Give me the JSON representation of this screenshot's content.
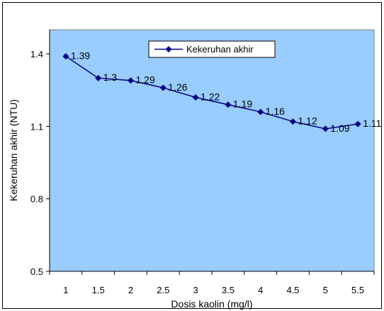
{
  "chart_data": {
    "type": "line",
    "title": "",
    "xlabel": "Dosis kaolin (mg/l)",
    "ylabel": "Kekeruhan akhir (NTU)",
    "x_tick_labels": [
      "1",
      "1.5",
      "2",
      "2.5",
      "3",
      "3.5",
      "4",
      "4.5",
      "5",
      "5.5"
    ],
    "y_tick_labels": [
      "0.5",
      "0.8",
      "1.1",
      "1.4"
    ],
    "y_ticks": [
      0.5,
      0.8,
      1.1,
      1.4
    ],
    "ylim": [
      0.5,
      1.5
    ],
    "grid": false,
    "legend_position": "top-center",
    "colors": {
      "plot_background": "#99ccff",
      "series": "#000080"
    },
    "series": [
      {
        "name": "Kekeruhan akhir",
        "x": [
          1,
          1.5,
          2,
          2.5,
          3,
          3.5,
          4,
          4.5,
          5,
          5.5
        ],
        "values": [
          1.39,
          1.3,
          1.29,
          1.26,
          1.22,
          1.19,
          1.16,
          1.12,
          1.09,
          1.11
        ],
        "data_labels": [
          "1.39",
          "1.3",
          "1.29",
          "1.26",
          "1.22",
          "1.19",
          "1.16",
          "1.12",
          "1.09",
          "1.11"
        ],
        "marker": "diamond"
      }
    ]
  }
}
